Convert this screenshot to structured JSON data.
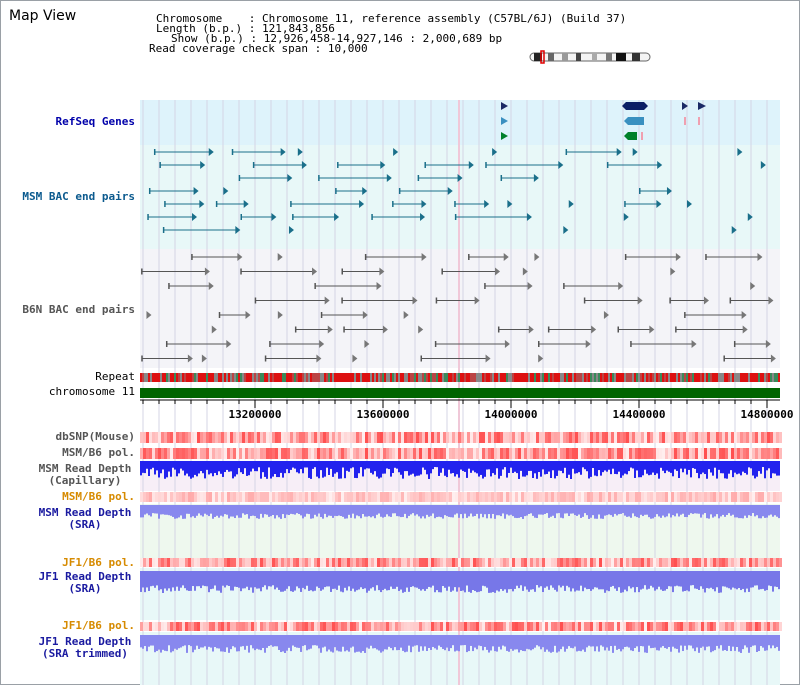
{
  "title": "Map View",
  "info": {
    "chromosome_label": "Chromosome",
    "chromosome_value": "Chromosome 11, reference assembly (C57BL/6J) (Build 37)",
    "length_label": "Length (b.p.)",
    "length_value": "121,843,856",
    "show_label": "Show (b.p.)",
    "show_value": "12,926,458-14,927,146 : 2,000,689 bp",
    "coverage_label": "Read coverage check span",
    "coverage_value": "10,000"
  },
  "tracks": {
    "refseq": "RefSeq Genes",
    "msm_bac": "MSM BAC end pairs",
    "b6n_bac": "B6N BAC end pairs",
    "repeat": "Repeat",
    "chromosome": "chromosome 11",
    "dbsnp": "dbSNP(Mouse)",
    "msm_b6_pol_1": "MSM/B6 pol.",
    "msm_read_depth_cap_1": "MSM Read Depth",
    "msm_read_depth_cap_2": "(Capillary)",
    "msm_b6_pol_2": "MSM/B6 pol.",
    "msm_read_depth_sra_1": "MSM Read Depth",
    "msm_read_depth_sra_2": "(SRA)",
    "jf1_b6_pol_1": "JF1/B6 pol.",
    "jf1_read_depth_sra_1": "JF1 Read Depth",
    "jf1_read_depth_sra_2": "(SRA)",
    "jf1_b6_pol_2": "JF1/B6 pol.",
    "jf1_read_depth_trim_1": "JF1 Read Depth",
    "jf1_read_depth_trim_2": "(SRA trimmed)"
  },
  "axis": {
    "ticks": [
      "13200000",
      "13600000",
      "14000000",
      "14400000",
      "14800000"
    ]
  },
  "colors": {
    "refseq_bg": "#def3fb",
    "msm_bac_bg": "#e8f8f8",
    "b6n_bac_bg": "#f4f4f8",
    "chromosome_bar": "#006400",
    "depth_blue": "#2222ee",
    "depth_light": "#8888ee"
  }
}
